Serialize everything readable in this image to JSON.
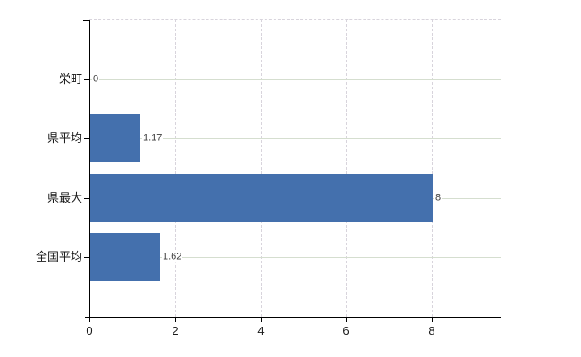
{
  "chart_data": {
    "type": "bar",
    "orientation": "horizontal",
    "title": "",
    "categories": [
      "栄町",
      "県平均",
      "県最大",
      "全国平均"
    ],
    "values": [
      0,
      1.17,
      8,
      1.62
    ],
    "value_labels": [
      "0",
      "1.17",
      "8",
      "1.62"
    ],
    "x_ticks": [
      0,
      2,
      4,
      6,
      8
    ],
    "x_tick_labels": [
      "0",
      "2",
      "4",
      "6",
      "8"
    ],
    "xlim": [
      0,
      9.6
    ],
    "grid": true,
    "legend_position": "none",
    "colors": {
      "bar": "#4470ad",
      "axis": "#000000",
      "h_gridline": "#d5decf",
      "v_gridline": "#d8d4dc",
      "category_text": "#1a1a1a",
      "value_text": "#3d3d3d",
      "tick_text": "#1a1a1a",
      "background": "#ffffff"
    }
  }
}
